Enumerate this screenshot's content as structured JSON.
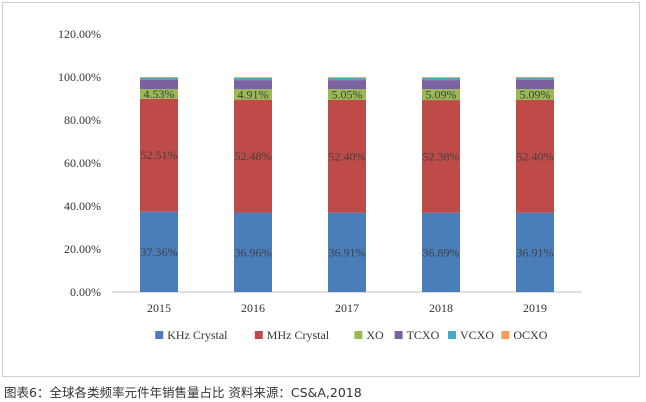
{
  "chart_data": {
    "type": "bar",
    "stacked": true,
    "categories": [
      "2015",
      "2016",
      "2017",
      "2018",
      "2019"
    ],
    "series": [
      {
        "name": "KHz Crystal",
        "color": "#4a7ebb",
        "values": [
          37.36,
          36.96,
          36.91,
          36.89,
          36.91
        ],
        "labels": [
          "37.36%",
          "36.96%",
          "36.91%",
          "36.89%",
          "36.91%"
        ]
      },
      {
        "name": "MHz Crystal",
        "color": "#be4b48",
        "values": [
          52.51,
          52.48,
          52.4,
          52.38,
          52.4
        ],
        "labels": [
          "52.51%",
          "52.48%",
          "52.40%",
          "52.38%",
          "52.40%"
        ]
      },
      {
        "name": "XO",
        "color": "#98b954",
        "values": [
          4.53,
          4.91,
          5.05,
          5.09,
          5.09
        ],
        "labels": [
          "4.53%",
          "4.91%",
          "5.05%",
          "5.09%",
          "5.09%"
        ]
      },
      {
        "name": "TCXO",
        "color": "#7d60a0",
        "values": [
          4.2,
          4.2,
          4.2,
          4.2,
          4.2
        ],
        "labels": []
      },
      {
        "name": "VCXO",
        "color": "#46aac5",
        "values": [
          1.1,
          1.1,
          1.1,
          1.1,
          1.1
        ],
        "labels": []
      },
      {
        "name": "OCXO",
        "color": "#f59d56",
        "values": [
          0.3,
          0.3,
          0.3,
          0.3,
          0.3
        ],
        "labels": []
      }
    ],
    "yticks": [
      "0.00%",
      "20.00%",
      "40.00%",
      "60.00%",
      "80.00%",
      "100.00%",
      "120.00%"
    ],
    "ylim": [
      0,
      120
    ],
    "legend_position": "bottom",
    "title": "",
    "xlabel": "",
    "ylabel": ""
  },
  "caption": "图表6：全球各类频率元件年销售量占比  资料来源：CS&A,2018"
}
